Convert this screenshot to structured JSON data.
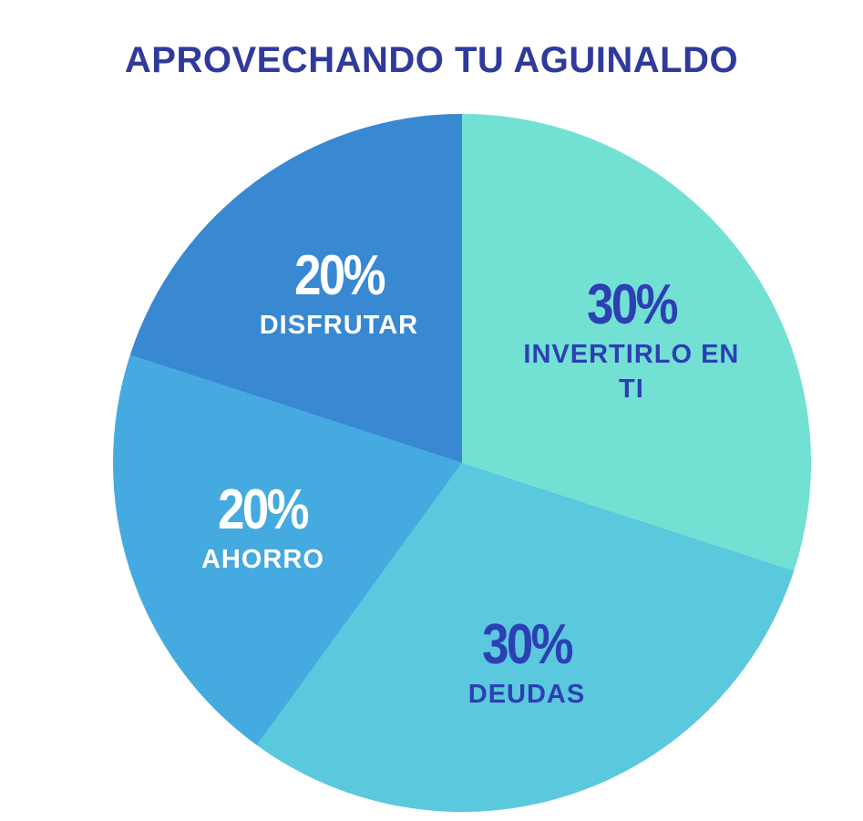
{
  "chart_data": {
    "type": "pie",
    "title": "APROVECHANDO TU AGUINALDO",
    "categories": [
      "INVERTIRLO EN TI",
      "DEUDAS",
      "AHORRO",
      "DISFRUTAR"
    ],
    "values": [
      30,
      30,
      20,
      20
    ],
    "value_labels": [
      "30%",
      "30%",
      "20%",
      "20%"
    ],
    "colors": [
      "#72e0d3",
      "#5ac8dd",
      "#45aadf",
      "#3888d2"
    ],
    "label_colors": [
      "#2c3fb3",
      "#2c3fb3",
      "#ffffff",
      "#ffffff"
    ]
  }
}
